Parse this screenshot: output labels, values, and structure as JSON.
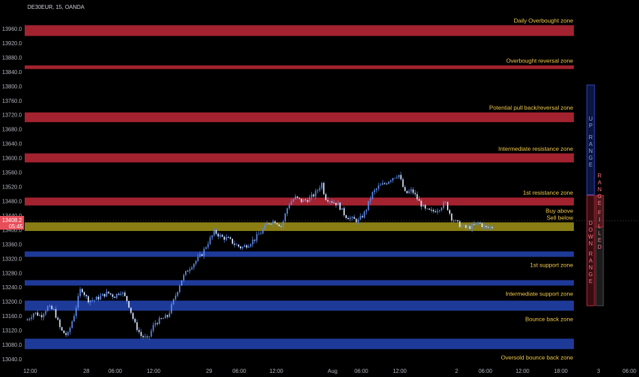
{
  "symbol": "DE30EUR, 15, OANDA",
  "price_label": "13408.2",
  "countdown_label": "05:45",
  "colors": {
    "background": "#000000",
    "red_zone": "#a3222f",
    "blue_zone": "#1e3a99",
    "gold_zone": "#8a7d14",
    "candle": "#5b8def",
    "label": "#f0c84a",
    "price_tag": "#e84e5a"
  },
  "chart_data": {
    "type": "candlestick",
    "ylim": [
      13040,
      13990
    ],
    "y_ticks": [
      13040,
      13080,
      13120,
      13160,
      13200,
      13240,
      13280,
      13320,
      13360,
      13400,
      13440,
      13480,
      13520,
      13560,
      13600,
      13640,
      13680,
      13720,
      13760,
      13800,
      13840,
      13880,
      13920,
      13960
    ],
    "x_ticks": [
      "12:00",
      "28",
      "06:00",
      "12:00",
      "29",
      "06:00",
      "12:00",
      "Aug",
      "06:00",
      "12:00",
      "2",
      "06:00",
      "12:00",
      "18:00",
      "3",
      "06:00"
    ],
    "zones": [
      {
        "label": "Daily Overbought zone",
        "low": 13940,
        "high": 13970,
        "kind": "red"
      },
      {
        "label": "Overbought reversal zone",
        "low": 13848,
        "high": 13858,
        "kind": "red"
      },
      {
        "label": "Potential pull back/reversal zone",
        "low": 13700,
        "high": 13727,
        "kind": "red"
      },
      {
        "label": "Intermediate resistance zone",
        "low": 13588,
        "high": 13613,
        "kind": "red"
      },
      {
        "label": "1st resistance zone",
        "low": 13468,
        "high": 13490,
        "kind": "red"
      },
      {
        "label": "Buy above\nSell below",
        "low": 13397,
        "high": 13421,
        "kind": "gold"
      },
      {
        "label": "1st support zone",
        "low": 13325,
        "high": 13340,
        "kind": "blue"
      },
      {
        "label": "Intermediate support zone",
        "low": 13245,
        "high": 13260,
        "kind": "blue"
      },
      {
        "label": "Bounce back zone",
        "low": 13175,
        "high": 13203,
        "kind": "blue"
      },
      {
        "label": "Oversold bounce back zone",
        "low": 13068,
        "high": 13097,
        "kind": "blue"
      }
    ],
    "path_points": [
      [
        0,
        13150
      ],
      [
        2,
        13170
      ],
      [
        4,
        13160
      ],
      [
        6,
        13185
      ],
      [
        8,
        13175
      ],
      [
        10,
        13120
      ],
      [
        12,
        13105
      ],
      [
        14,
        13165
      ],
      [
        16,
        13240
      ],
      [
        18,
        13205
      ],
      [
        20,
        13205
      ],
      [
        22,
        13215
      ],
      [
        24,
        13225
      ],
      [
        26,
        13215
      ],
      [
        28,
        13230
      ],
      [
        30,
        13200
      ],
      [
        32,
        13140
      ],
      [
        34,
        13105
      ],
      [
        36,
        13095
      ],
      [
        38,
        13140
      ],
      [
        40,
        13150
      ],
      [
        42,
        13160
      ],
      [
        44,
        13210
      ],
      [
        46,
        13260
      ],
      [
        48,
        13290
      ],
      [
        50,
        13310
      ],
      [
        52,
        13330
      ],
      [
        54,
        13365
      ],
      [
        56,
        13395
      ],
      [
        58,
        13380
      ],
      [
        60,
        13375
      ],
      [
        62,
        13360
      ],
      [
        64,
        13350
      ],
      [
        66,
        13360
      ],
      [
        68,
        13375
      ],
      [
        70,
        13395
      ],
      [
        72,
        13420
      ],
      [
        74,
        13425
      ],
      [
        76,
        13410
      ],
      [
        78,
        13470
      ],
      [
        80,
        13490
      ],
      [
        82,
        13480
      ],
      [
        84,
        13485
      ],
      [
        86,
        13500
      ],
      [
        88,
        13530
      ],
      [
        89,
        13490
      ],
      [
        91,
        13480
      ],
      [
        93,
        13470
      ],
      [
        95,
        13440
      ],
      [
        97,
        13430
      ],
      [
        99,
        13425
      ],
      [
        101,
        13450
      ],
      [
        103,
        13500
      ],
      [
        105,
        13520
      ],
      [
        107,
        13530
      ],
      [
        109,
        13545
      ],
      [
        111,
        13555
      ],
      [
        113,
        13500
      ],
      [
        115,
        13510
      ],
      [
        117,
        13480
      ],
      [
        119,
        13455
      ],
      [
        121,
        13450
      ],
      [
        123,
        13460
      ],
      [
        125,
        13475
      ],
      [
        127,
        13430
      ],
      [
        129,
        13415
      ],
      [
        131,
        13405
      ],
      [
        133,
        13410
      ],
      [
        135,
        13420
      ],
      [
        137,
        13405
      ],
      [
        139,
        13408
      ]
    ],
    "range_box": {
      "labels": [
        "UP",
        "RANGE",
        "DOWN",
        "RANGE",
        "RANGE",
        "FILLED"
      ]
    }
  }
}
